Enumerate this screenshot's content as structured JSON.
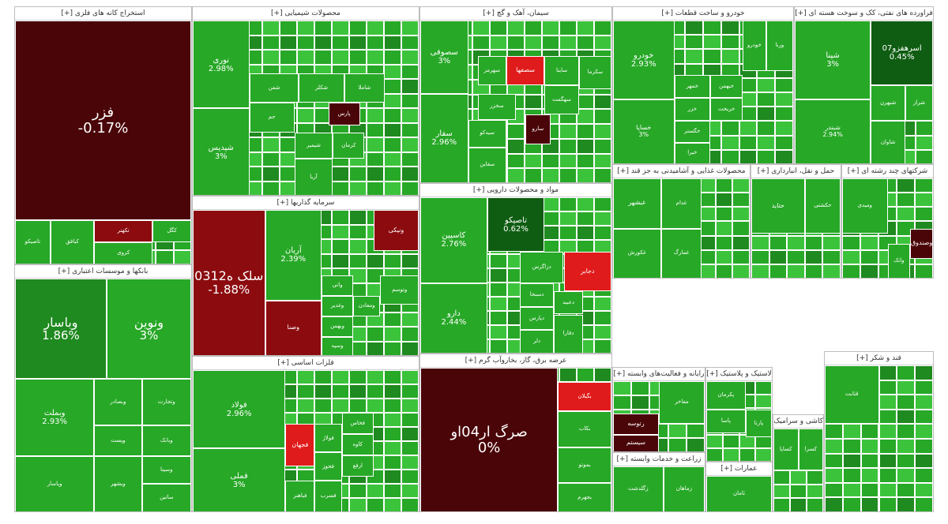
{
  "colors": {
    "up": "#27a827",
    "up_light": "#3cc33c",
    "up_dark": "#0f5d12",
    "up_mid": "#1f8a1f",
    "down_dark": "#4a0508",
    "down_mid": "#8b0b0f",
    "down_red": "#e01b1b",
    "sector_border": "#bdbdbd",
    "header_text": "#333333"
  },
  "chart_data": {
    "type": "treemap",
    "sectors": [
      {
        "name": "استخراج کانه های فلزی [+]",
        "tiles": [
          {
            "symbol": "فزر",
            "change": "-0.17%",
            "color": "down_dark",
            "size": "xl"
          },
          {
            "symbol": "کگل",
            "change": "",
            "color": "up",
            "size": "xs"
          },
          {
            "symbol": "تکهنر",
            "change": "",
            "color": "down_mid",
            "size": "xs"
          },
          {
            "symbol": "کروی",
            "change": "",
            "color": "up",
            "size": "xs"
          },
          {
            "symbol": "کبافق",
            "change": "",
            "color": "up",
            "size": "xs"
          },
          {
            "symbol": "تاصیکو",
            "change": "",
            "color": "up",
            "size": "xs"
          }
        ]
      },
      {
        "name": "محصولات شیمیایی [+]",
        "tiles": [
          {
            "symbol": "نوری",
            "change": "2.98%",
            "color": "up",
            "size": "md"
          },
          {
            "symbol": "شپدیس",
            "change": "3%",
            "color": "up",
            "size": "md"
          },
          {
            "symbol": "شفن",
            "change": "",
            "color": "up",
            "size": "xs"
          },
          {
            "symbol": "شکلر",
            "change": "",
            "color": "up",
            "size": "xs"
          },
          {
            "symbol": "شاملا",
            "change": "",
            "color": "up",
            "size": "xs"
          },
          {
            "symbol": "پارس",
            "change": "",
            "color": "down_dark",
            "size": "xs"
          },
          {
            "symbol": "جم",
            "change": "",
            "color": "up",
            "size": "xs"
          },
          {
            "symbol": "شیمیر",
            "change": "",
            "color": "up",
            "size": "xs"
          },
          {
            "symbol": "کرمان",
            "change": "",
            "color": "up",
            "size": "xs"
          },
          {
            "symbol": "آریا",
            "change": "",
            "color": "up",
            "size": "xs"
          }
        ]
      },
      {
        "name": "سیمان، آهک و گچ [+]",
        "tiles": [
          {
            "symbol": "سصوفی",
            "change": "3%",
            "color": "up",
            "size": "md"
          },
          {
            "symbol": "سفار",
            "change": "2.96%",
            "color": "up",
            "size": "md"
          },
          {
            "symbol": "سصفها",
            "change": "",
            "color": "down_red",
            "size": "sm"
          },
          {
            "symbol": "سارو",
            "change": "",
            "color": "down_dark",
            "size": "xs"
          },
          {
            "symbol": "ساینا",
            "change": "",
            "color": "up",
            "size": "xs"
          },
          {
            "symbol": "سخزر",
            "change": "",
            "color": "up",
            "size": "xs"
          },
          {
            "symbol": "سهگمت",
            "change": "",
            "color": "up",
            "size": "xs"
          },
          {
            "symbol": "سیدکو",
            "change": "",
            "color": "up",
            "size": "xs"
          },
          {
            "symbol": "سقاین",
            "change": "",
            "color": "up",
            "size": "xs"
          },
          {
            "symbol": "سکرما",
            "change": "",
            "color": "up",
            "size": "xs"
          },
          {
            "symbol": "سهرمز",
            "change": "",
            "color": "up",
            "size": "xs"
          }
        ]
      },
      {
        "name": "خودرو و ساخت قطعات [+]",
        "tiles": [
          {
            "symbol": "خودرو",
            "change": "2.93%",
            "color": "up",
            "size": "md"
          },
          {
            "symbol": "خساپا",
            "change": "3%",
            "color": "up",
            "size": "sm"
          },
          {
            "symbol": "ورنا",
            "change": "",
            "color": "up",
            "size": "xs"
          },
          {
            "symbol": "خمهر",
            "change": "",
            "color": "up",
            "size": "xs"
          },
          {
            "symbol": "خزر",
            "change": "",
            "color": "up",
            "size": "xs"
          },
          {
            "symbol": "خگستر",
            "change": "",
            "color": "up",
            "size": "xs"
          },
          {
            "symbol": "خبهمن",
            "change": "",
            "color": "up",
            "size": "xs"
          },
          {
            "symbol": "خریخت",
            "change": "",
            "color": "up",
            "size": "xs"
          },
          {
            "symbol": "خودرو",
            "change": "",
            "color": "up",
            "size": "xs"
          },
          {
            "symbol": "خیرا",
            "change": "",
            "color": "up",
            "size": "xs"
          }
        ]
      },
      {
        "name": "فراورده های نفتی، کک و سوخت هسته ای [+]",
        "tiles": [
          {
            "symbol": "شپنا",
            "change": "3%",
            "color": "up",
            "size": "md"
          },
          {
            "symbol": "اسرهفزو07",
            "change": "0.45%",
            "color": "up_dark",
            "size": "md"
          },
          {
            "symbol": "شبندر",
            "change": "2.94%",
            "color": "up",
            "size": "sm"
          },
          {
            "symbol": "شاوان",
            "change": "",
            "color": "up",
            "size": "xs"
          },
          {
            "symbol": "شبهرن",
            "change": "",
            "color": "up",
            "size": "xs"
          },
          {
            "symbol": "شراز",
            "change": "",
            "color": "up",
            "size": "xs"
          }
        ]
      },
      {
        "name": "بانکها و موسسات اعتباری [+]",
        "tiles": [
          {
            "symbol": "وباسار",
            "change": "1.86%",
            "color": "up_mid",
            "size": "lg"
          },
          {
            "symbol": "ونوین",
            "change": "3%",
            "color": "up",
            "size": "lg"
          },
          {
            "symbol": "وبملت",
            "change": "2.93%",
            "color": "up",
            "size": "md"
          },
          {
            "symbol": "وبصادر",
            "change": "",
            "color": "up",
            "size": "xs"
          },
          {
            "symbol": "وتجارت",
            "change": "",
            "color": "up",
            "size": "xs"
          },
          {
            "symbol": "وپست",
            "change": "",
            "color": "up",
            "size": "xs"
          },
          {
            "symbol": "وبانک",
            "change": "",
            "color": "up",
            "size": "xs"
          },
          {
            "symbol": "وپاسار",
            "change": "",
            "color": "up",
            "size": "xs"
          },
          {
            "symbol": "وبشهر",
            "change": "",
            "color": "up",
            "size": "xs"
          },
          {
            "symbol": "وسینا",
            "change": "",
            "color": "up",
            "size": "xs"
          },
          {
            "symbol": "ساتین",
            "change": "",
            "color": "up",
            "size": "xs"
          }
        ]
      },
      {
        "name": "سرمایه گذاریها [+]",
        "tiles": [
          {
            "symbol": "سلک ه0312",
            "change": "-1.88%",
            "color": "down_mid",
            "size": "lg"
          },
          {
            "symbol": "آریان",
            "change": "2.39%",
            "color": "up",
            "size": "md"
          },
          {
            "symbol": "وصنا",
            "change": "",
            "color": "down_mid",
            "size": "sm"
          },
          {
            "symbol": "ونیکی",
            "change": "",
            "color": "down_mid",
            "size": "sm"
          },
          {
            "symbol": "واتی",
            "change": "",
            "color": "up",
            "size": "xs"
          },
          {
            "symbol": "وغدیر",
            "change": "",
            "color": "up",
            "size": "xs"
          },
          {
            "symbol": "ومعادن",
            "change": "",
            "color": "up",
            "size": "xs"
          },
          {
            "symbol": "وبهمن",
            "change": "",
            "color": "up",
            "size": "xs"
          },
          {
            "symbol": "وسپه",
            "change": "",
            "color": "up",
            "size": "xs"
          },
          {
            "symbol": "وتوسم",
            "change": "",
            "color": "up",
            "size": "xs"
          }
        ]
      },
      {
        "name": "فلزات اساسی [+]",
        "tiles": [
          {
            "symbol": "فولاد",
            "change": "2.96%",
            "color": "up",
            "size": "md"
          },
          {
            "symbol": "فملی",
            "change": "3%",
            "color": "up",
            "size": "md"
          },
          {
            "symbol": "فجهان",
            "change": "",
            "color": "down_red",
            "size": "sm"
          },
          {
            "symbol": "فولاژ",
            "change": "",
            "color": "up",
            "size": "xs"
          },
          {
            "symbol": "فخوز",
            "change": "",
            "color": "up",
            "size": "xs"
          },
          {
            "symbol": "کاوه",
            "change": "",
            "color": "up",
            "size": "xs"
          },
          {
            "symbol": "فخاس",
            "change": "",
            "color": "up",
            "size": "xs"
          },
          {
            "symbol": "ارفع",
            "change": "",
            "color": "up",
            "size": "xs"
          },
          {
            "symbol": "فباهنر",
            "change": "",
            "color": "up",
            "size": "xs"
          },
          {
            "symbol": "فسرب",
            "change": "",
            "color": "up",
            "size": "xs"
          }
        ]
      },
      {
        "name": "مواد و محصولات دارویی [+]",
        "tiles": [
          {
            "symbol": "کاسپین",
            "change": "2.76%",
            "color": "up",
            "size": "md"
          },
          {
            "symbol": "تاصیکو",
            "change": "0.62%",
            "color": "up_dark",
            "size": "md"
          },
          {
            "symbol": "دارو",
            "change": "2.44%",
            "color": "up",
            "size": "md"
          },
          {
            "symbol": "دجابر",
            "change": "",
            "color": "down_red",
            "size": "sm"
          },
          {
            "symbol": "دزاگرس",
            "change": "",
            "color": "up",
            "size": "xs"
          },
          {
            "symbol": "دسبحا",
            "change": "",
            "color": "up",
            "size": "xs"
          },
          {
            "symbol": "دپارس",
            "change": "",
            "color": "up",
            "size": "xs"
          },
          {
            "symbol": "دعبید",
            "change": "",
            "color": "up",
            "size": "xs"
          },
          {
            "symbol": "دلر",
            "change": "",
            "color": "up",
            "size": "xs"
          },
          {
            "symbol": "دفارا",
            "change": "",
            "color": "up",
            "size": "xs"
          }
        ]
      },
      {
        "name": "عرضه برق، گاز، بخاروآب گرم [+]",
        "tiles": [
          {
            "symbol": "صرگ ار04او",
            "change": "0%",
            "color": "down_dark",
            "size": "xl"
          },
          {
            "symbol": "بکاب",
            "change": "",
            "color": "up",
            "size": "xs"
          },
          {
            "symbol": "بگیلان",
            "change": "",
            "color": "down_red",
            "size": "xs"
          },
          {
            "symbol": "بموتو",
            "change": "",
            "color": "up",
            "size": "xs"
          },
          {
            "symbol": "بجهرم",
            "change": "",
            "color": "up",
            "size": "xs"
          }
        ]
      },
      {
        "name": "محصولات غذایی و آشامیدنی به جز قند [+]",
        "tiles": [
          {
            "symbol": "غبشهر",
            "change": "",
            "color": "up",
            "size": "sm"
          },
          {
            "symbol": "غدام",
            "change": "",
            "color": "up",
            "size": "xs"
          },
          {
            "symbol": "غکورش",
            "change": "",
            "color": "up",
            "size": "xs"
          },
          {
            "symbol": "غمارگ",
            "change": "",
            "color": "up",
            "size": "xs"
          }
        ]
      },
      {
        "name": "حمل و نقل، انبارداری [+]",
        "tiles": [
          {
            "symbol": "حتاید",
            "change": "",
            "color": "up",
            "size": "sm"
          },
          {
            "symbol": "حکشتی",
            "change": "",
            "color": "up",
            "size": "xs"
          }
        ]
      },
      {
        "name": "شرکتهای چند رشته ای [+]",
        "tiles": [
          {
            "symbol": "وصندوق",
            "change": "",
            "color": "down_dark",
            "size": "sm"
          },
          {
            "symbol": "واتک",
            "change": "",
            "color": "up",
            "size": "xs"
          },
          {
            "symbol": "ومیدی",
            "change": "",
            "color": "up",
            "size": "xs"
          }
        ]
      },
      {
        "name": "رایانه و فعالیت‌های وابسته [+]",
        "tiles": [
          {
            "symbol": "رتوسه",
            "change": "",
            "color": "down_dark",
            "size": "sm"
          },
          {
            "symbol": "سیستم",
            "change": "",
            "color": "down_dark",
            "size": "sm"
          },
          {
            "symbol": "مفاخر",
            "change": "",
            "color": "up",
            "size": "xs"
          }
        ]
      },
      {
        "name": "زراعت و خدمات وابسته [+]",
        "tiles": [
          {
            "symbol": "زگلدشت",
            "change": "",
            "color": "up",
            "size": "xs"
          },
          {
            "symbol": "زماهان",
            "change": "",
            "color": "up",
            "size": "xs"
          }
        ]
      },
      {
        "name": "لاستیک و پلاستیک [+]",
        "tiles": [
          {
            "symbol": "پکرمان",
            "change": "",
            "color": "up",
            "size": "xs"
          },
          {
            "symbol": "پاسا",
            "change": "",
            "color": "up",
            "size": "xs"
          },
          {
            "symbol": "پارتا",
            "change": "",
            "color": "up",
            "size": "xs"
          }
        ]
      },
      {
        "name": "عمارات [+]",
        "tiles": [
          {
            "symbol": "ثامان",
            "change": "",
            "color": "up",
            "size": "xs"
          }
        ]
      },
      {
        "name": "کاشی و سرامیک [+]",
        "tiles": [
          {
            "symbol": "کساپا",
            "change": "",
            "color": "up",
            "size": "xs"
          },
          {
            "symbol": "کسرا",
            "change": "",
            "color": "up",
            "size": "xs"
          }
        ]
      },
      {
        "name": "قند و شکر [+]",
        "tiles": [
          {
            "symbol": "قثابت",
            "change": "",
            "color": "up",
            "size": "xs"
          }
        ]
      }
    ]
  }
}
